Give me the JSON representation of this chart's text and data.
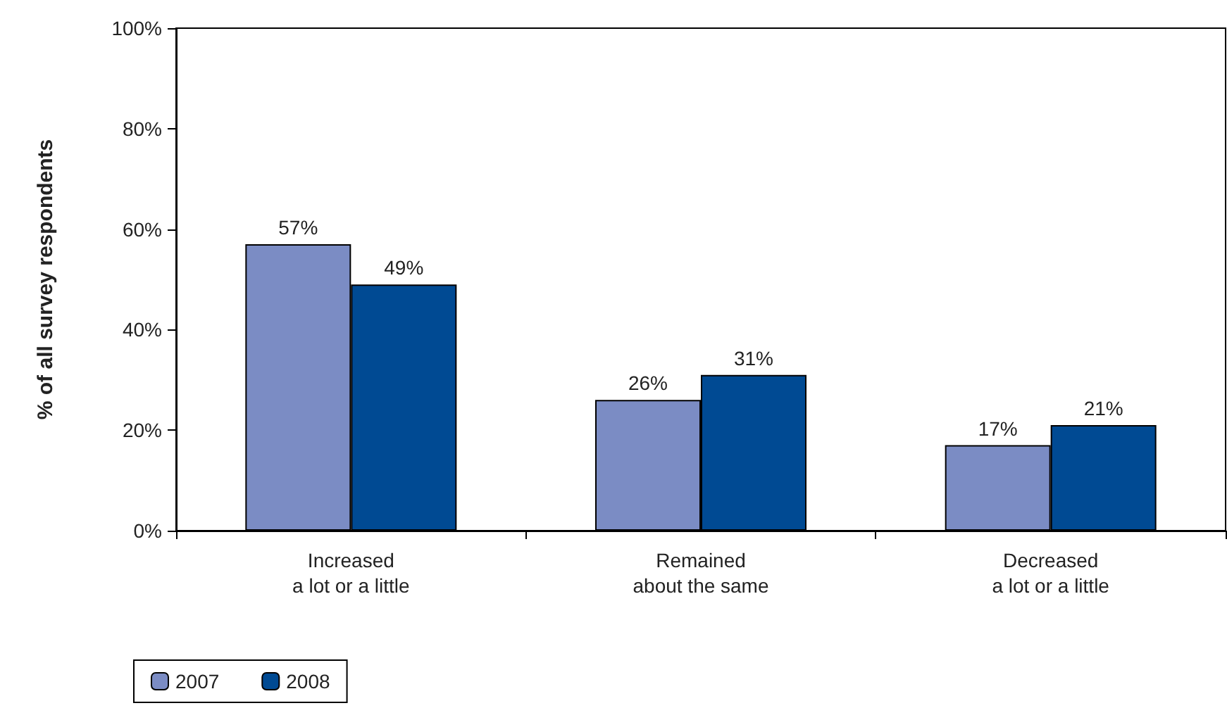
{
  "chart_data": {
    "type": "bar",
    "ylabel": "% of all survey respondents",
    "categories": [
      "Increased\na lot or a little",
      "Remained\nabout the same",
      "Decreased\na lot or a little"
    ],
    "series": [
      {
        "name": "2007",
        "color": "#7b8cc4",
        "values": [
          57,
          26,
          17
        ],
        "value_labels": [
          "57%",
          "26%",
          "17%"
        ]
      },
      {
        "name": "2008",
        "color": "#004a93",
        "values": [
          49,
          31,
          21
        ],
        "value_labels": [
          "49%",
          "31%",
          "21%"
        ]
      }
    ],
    "ylim": [
      0,
      100
    ],
    "yticks": [
      {
        "value": 0,
        "label": "0%"
      },
      {
        "value": 20,
        "label": "20%"
      },
      {
        "value": 40,
        "label": "40%"
      },
      {
        "value": 60,
        "label": "60%"
      },
      {
        "value": 80,
        "label": "80%"
      },
      {
        "value": 100,
        "label": "100%"
      }
    ],
    "grid": false,
    "legend": "bottom left"
  }
}
